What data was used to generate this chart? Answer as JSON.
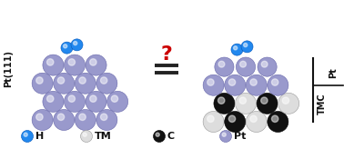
{
  "bg_color": "#ffffff",
  "pt_color": "#9999cc",
  "pt_edge": "#6666aa",
  "h_color": "#2288ee",
  "h_edge": "#0055bb",
  "tm_color": "#dddddd",
  "tm_edge": "#999999",
  "c_color": "#111111",
  "c_edge": "#000000",
  "question_color": "#cc0000",
  "label_pt111": "Pt(111)",
  "label_tmc": "TMC",
  "label_pt": "Pt",
  "legend": [
    {
      "symbol": "H",
      "color": "#2288ee",
      "edge": "#0055bb"
    },
    {
      "symbol": "TM",
      "color": "#dddddd",
      "edge": "#999999"
    },
    {
      "symbol": "C",
      "color": "#111111",
      "edge": "#000000"
    },
    {
      "symbol": "Pt",
      "color": "#9999cc",
      "edge": "#6666aa"
    }
  ],
  "fig_width": 3.78,
  "fig_height": 1.64,
  "dpi": 100
}
